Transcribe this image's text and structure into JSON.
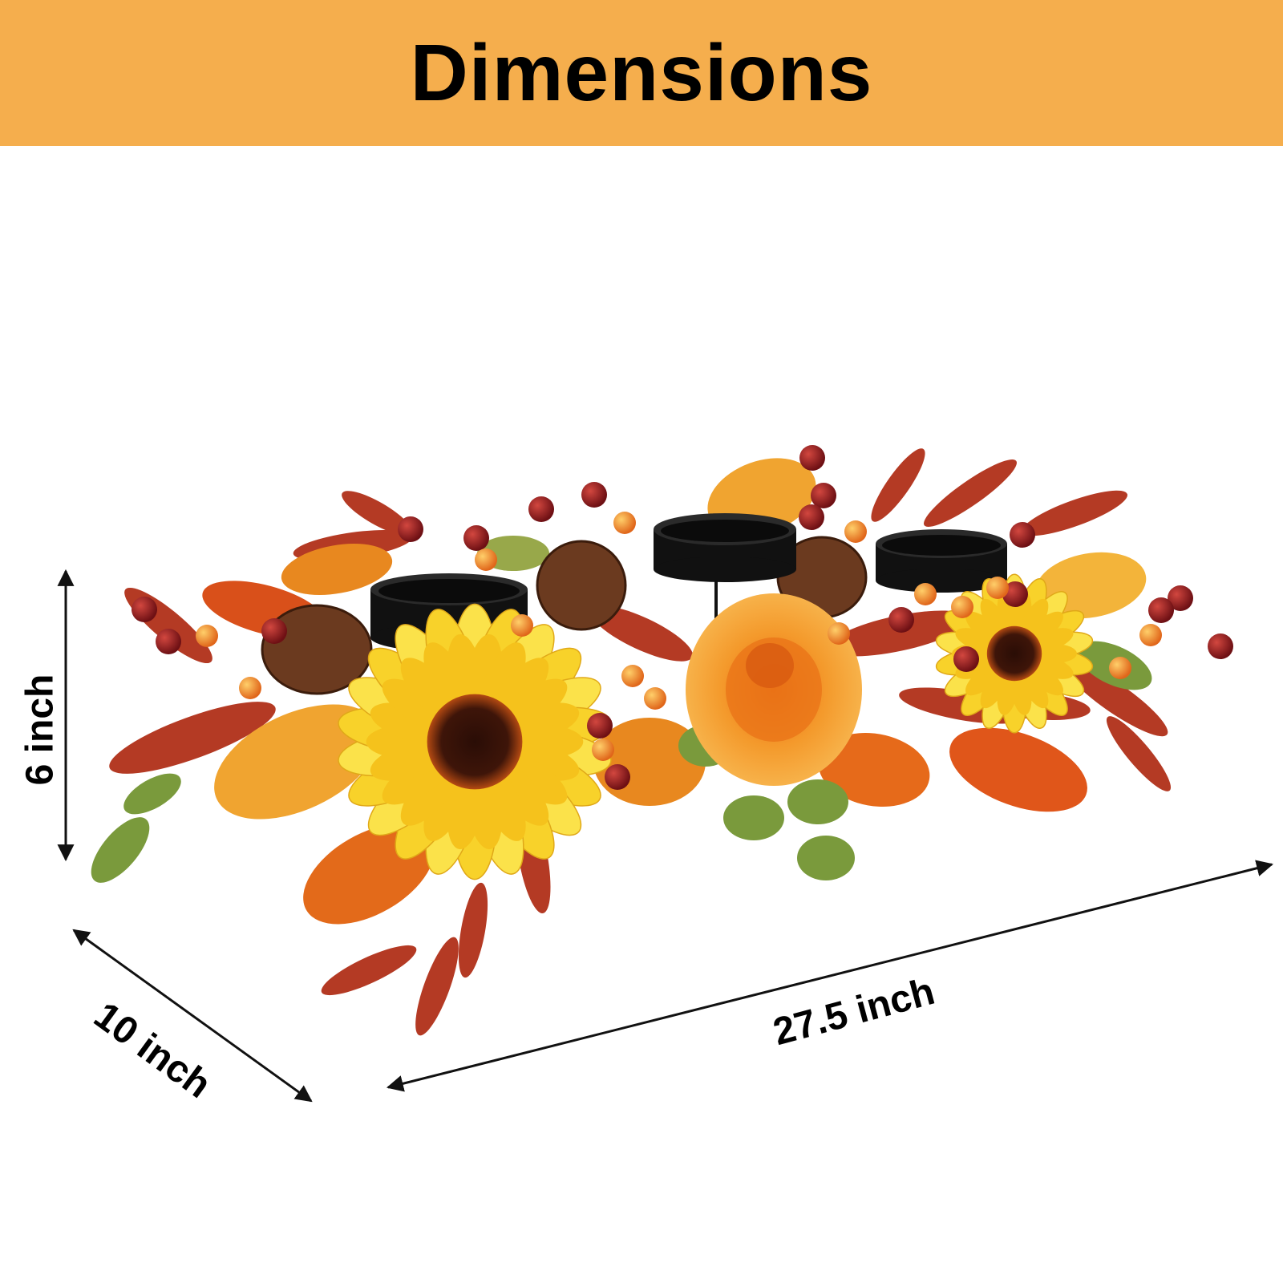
{
  "banner": {
    "title": "Dimensions",
    "background_color": "#F5AE4D"
  },
  "dimensions": {
    "height": "6 inch",
    "depth": "10 inch",
    "width": "27.5 inch"
  },
  "product_image": {
    "icon": "autumn-sunflower-candle-centerpiece",
    "candle_holders": 3
  }
}
